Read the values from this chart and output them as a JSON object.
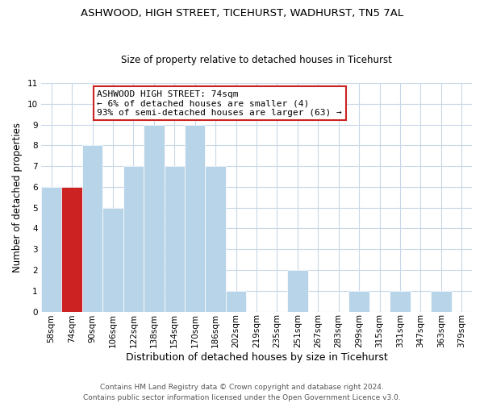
{
  "title1": "ASHWOOD, HIGH STREET, TICEHURST, WADHURST, TN5 7AL",
  "title2": "Size of property relative to detached houses in Ticehurst",
  "xlabel": "Distribution of detached houses by size in Ticehurst",
  "ylabel": "Number of detached properties",
  "footer1": "Contains HM Land Registry data © Crown copyright and database right 2024.",
  "footer2": "Contains public sector information licensed under the Open Government Licence v3.0.",
  "bins": [
    "58sqm",
    "74sqm",
    "90sqm",
    "106sqm",
    "122sqm",
    "138sqm",
    "154sqm",
    "170sqm",
    "186sqm",
    "202sqm",
    "219sqm",
    "235sqm",
    "251sqm",
    "267sqm",
    "283sqm",
    "299sqm",
    "315sqm",
    "331sqm",
    "347sqm",
    "363sqm",
    "379sqm"
  ],
  "counts": [
    6,
    6,
    8,
    5,
    7,
    9,
    7,
    9,
    7,
    1,
    0,
    0,
    2,
    0,
    0,
    1,
    0,
    1,
    0,
    1,
    0
  ],
  "highlight_bin_index": 1,
  "bar_color": "#b8d4e8",
  "highlight_bar_color": "#cc2222",
  "annotation_title": "ASHWOOD HIGH STREET: 74sqm",
  "annotation_line1": "← 6% of detached houses are smaller (4)",
  "annotation_line2": "93% of semi-detached houses are larger (63) →",
  "annotation_box_facecolor": "#ffffff",
  "annotation_box_edgecolor": "#cc2222",
  "ylim": [
    0,
    11
  ],
  "yticks": [
    0,
    1,
    2,
    3,
    4,
    5,
    6,
    7,
    8,
    9,
    10,
    11
  ],
  "grid_color": "#c8d8e8",
  "title1_fontsize": 9.5,
  "title2_fontsize": 8.5,
  "xlabel_fontsize": 9,
  "ylabel_fontsize": 8.5,
  "tick_fontsize": 7.5,
  "footer_fontsize": 6.5
}
